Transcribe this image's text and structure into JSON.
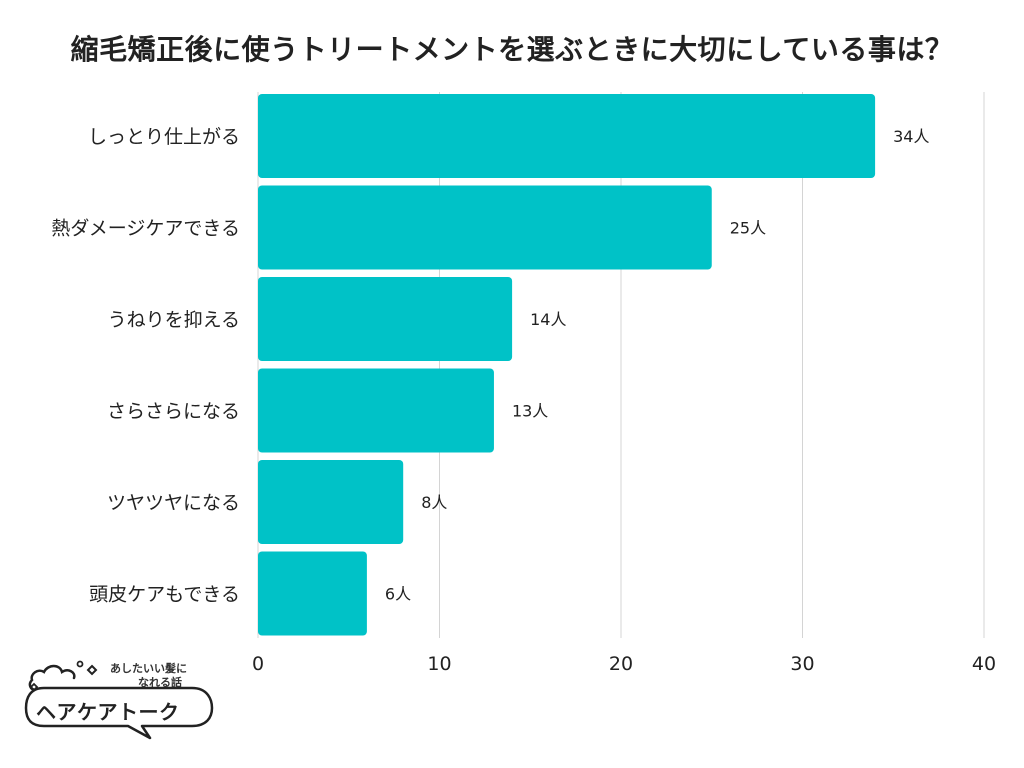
{
  "chart_data": {
    "type": "bar",
    "orientation": "horizontal",
    "title": "縮毛矯正後に使うトリートメントを選ぶときに大切にしている事は？",
    "categories": [
      "しっとり仕上がる",
      "熱ダメージケアできる",
      "うねりを抑える",
      "さらさらになる",
      "ツヤツヤになる",
      "頭皮ケアもできる"
    ],
    "values": [
      34,
      25,
      14,
      13,
      8,
      6
    ],
    "value_labels": [
      "34人",
      "25人",
      "14人",
      "13人",
      "8人",
      "6人"
    ],
    "xlim": [
      0,
      40
    ],
    "x_ticks": [
      "0",
      "10",
      "20",
      "30",
      "40"
    ],
    "grid": true,
    "bar_color": "#00c2c7",
    "grid_color": "#d4d4d4"
  },
  "logo": {
    "tagline_line1": "あしたいい髪に",
    "tagline_line2": "なれる話",
    "name": "ヘアケアトーク"
  }
}
